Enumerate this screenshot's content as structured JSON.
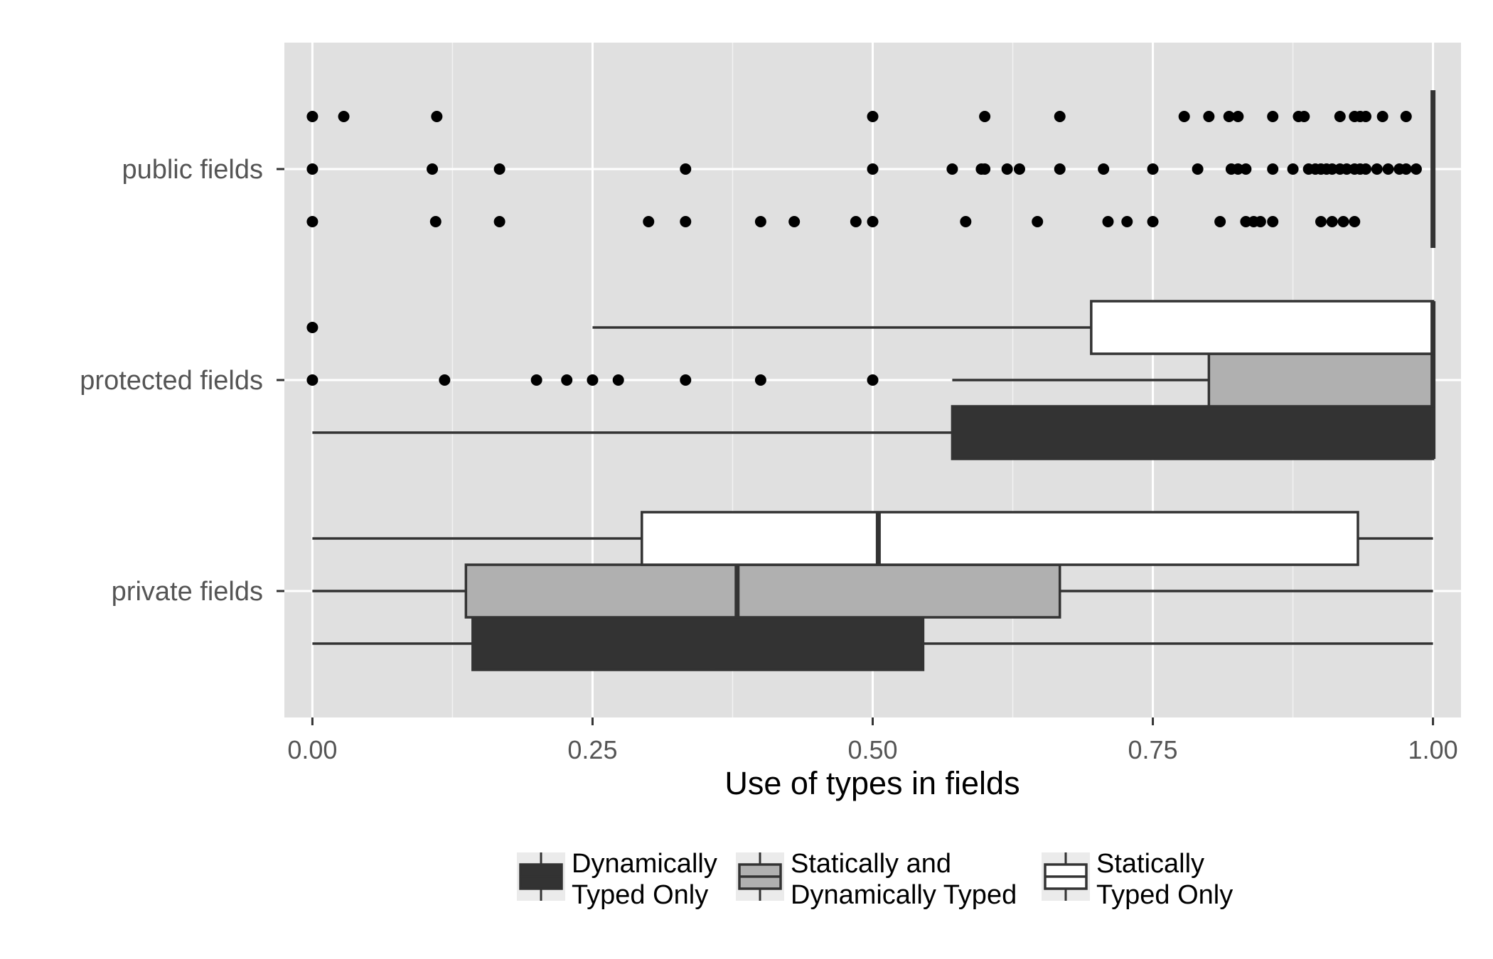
{
  "chart_data": {
    "type": "boxplot",
    "orientation": "horizontal",
    "xlabel": "Use of types in fields",
    "ylabel": "",
    "xlim": [
      -0.025,
      1.025
    ],
    "x_ticks": [
      0.0,
      0.25,
      0.5,
      0.75,
      1.0
    ],
    "x_tick_labels": [
      "0.00",
      "0.25",
      "0.50",
      "0.75",
      "1.00"
    ],
    "grid": true,
    "panel_background": "#e0e0e0",
    "categories": [
      "public fields",
      "protected fields",
      "private fields"
    ],
    "legend": {
      "placement": "bottom",
      "entries": [
        {
          "key": "dynamic",
          "line1": "Dynamically",
          "line2": "Typed Only",
          "color": "#333333"
        },
        {
          "key": "mixed",
          "line1": "Statically and",
          "line2": "Dynamically Typed",
          "color": "#b0b0b0"
        },
        {
          "key": "static",
          "line1": "Statically",
          "line2": "Typed Only",
          "color": "#ffffff"
        }
      ]
    },
    "groups": [
      {
        "category": "public fields",
        "boxes": [
          {
            "series": "dynamic",
            "min": 1.0,
            "q1": 1.0,
            "median": 1.0,
            "q3": 1.0,
            "max": 1.0,
            "outliers": [
              0.0,
              0.11,
              0.167,
              0.3,
              0.333,
              0.4,
              0.43,
              0.485,
              0.5,
              0.583,
              0.647,
              0.71,
              0.727,
              0.75,
              0.81,
              0.833,
              0.84,
              0.846,
              0.857,
              0.9,
              0.91,
              0.92,
              0.93
            ]
          },
          {
            "series": "mixed",
            "min": 1.0,
            "q1": 1.0,
            "median": 1.0,
            "q3": 1.0,
            "max": 1.0,
            "outliers": [
              0.0,
              0.107,
              0.167,
              0.333,
              0.5,
              0.571,
              0.597,
              0.6,
              0.62,
              0.631,
              0.667,
              0.706,
              0.75,
              0.79,
              0.82,
              0.826,
              0.833,
              0.857,
              0.875,
              0.889,
              0.895,
              0.9,
              0.905,
              0.91,
              0.917,
              0.923,
              0.93,
              0.935,
              0.94,
              0.95,
              0.96,
              0.97,
              0.976,
              0.985
            ]
          },
          {
            "series": "static",
            "min": 1.0,
            "q1": 1.0,
            "median": 1.0,
            "q3": 1.0,
            "max": 1.0,
            "outliers": [
              0.0,
              0.028,
              0.111,
              0.5,
              0.6,
              0.667,
              0.778,
              0.8,
              0.818,
              0.826,
              0.857,
              0.88,
              0.885,
              0.917,
              0.93,
              0.935,
              0.94,
              0.955,
              0.976
            ]
          }
        ]
      },
      {
        "category": "protected fields",
        "boxes": [
          {
            "series": "dynamic",
            "min": 0.0,
            "q1": 0.571,
            "median": 1.0,
            "q3": 1.0,
            "max": 1.0,
            "outliers": []
          },
          {
            "series": "mixed",
            "min": 0.571,
            "q1": 0.8,
            "median": 1.0,
            "q3": 1.0,
            "max": 1.0,
            "outliers": [
              0.0,
              0.118,
              0.2,
              0.227,
              0.25,
              0.273,
              0.333,
              0.4,
              0.5
            ]
          },
          {
            "series": "static",
            "min": 0.25,
            "q1": 0.695,
            "median": 1.0,
            "q3": 1.0,
            "max": 1.0,
            "outliers": [
              0.0
            ]
          }
        ]
      },
      {
        "category": "private fields",
        "boxes": [
          {
            "series": "dynamic",
            "min": 0.0,
            "q1": 0.143,
            "median": 0.357,
            "q3": 0.545,
            "max": 1.0,
            "outliers": []
          },
          {
            "series": "mixed",
            "min": 0.0,
            "q1": 0.137,
            "median": 0.379,
            "q3": 0.667,
            "max": 1.0,
            "outliers": []
          },
          {
            "series": "static",
            "min": 0.0,
            "q1": 0.294,
            "median": 0.505,
            "q3": 0.933,
            "max": 1.0,
            "outliers": []
          }
        ]
      }
    ]
  }
}
